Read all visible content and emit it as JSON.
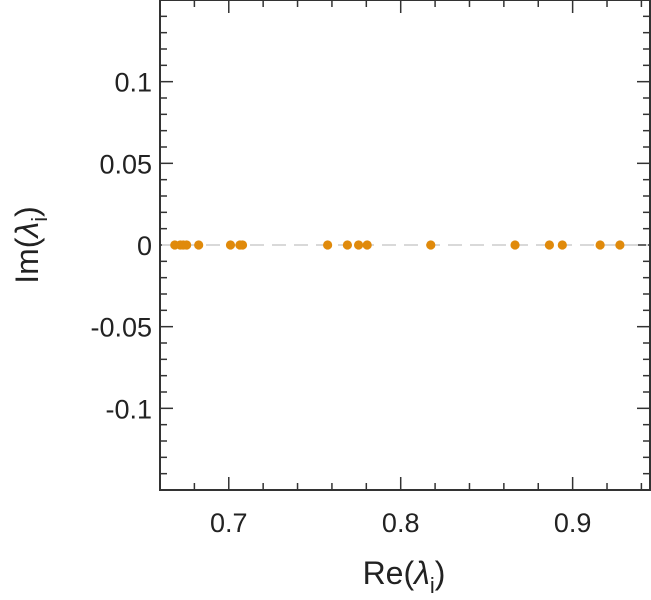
{
  "chart_data": {
    "type": "scatter",
    "xlabel": {
      "base": "Re(",
      "symbol": "λ",
      "subscript": "i",
      "close": ")"
    },
    "ylabel": {
      "base": "Im(",
      "symbol": "λ",
      "subscript": "i",
      "close": ")"
    },
    "xlim": [
      0.66,
      0.945
    ],
    "ylim": [
      -0.15,
      0.15
    ],
    "xticks": [
      0.7,
      0.8,
      0.9
    ],
    "xtick_labels": [
      "0.7",
      "0.8",
      "0.9"
    ],
    "yticks": [
      0.1,
      0.05,
      0,
      -0.05,
      -0.1
    ],
    "ytick_labels": [
      "0.1",
      "0.05",
      "0",
      "-0.05",
      "-0.1"
    ],
    "grid": false,
    "reference_line": {
      "y": 0,
      "style": "dashed",
      "color": "#d9d9d9"
    },
    "series": [
      {
        "color": "#e08a0b",
        "points": [
          {
            "x": 0.6686,
            "y": 0
          },
          {
            "x": 0.6718,
            "y": 0
          },
          {
            "x": 0.6735,
            "y": 0
          },
          {
            "x": 0.6755,
            "y": 0
          },
          {
            "x": 0.6825,
            "y": 0
          },
          {
            "x": 0.701,
            "y": 0
          },
          {
            "x": 0.7065,
            "y": 0
          },
          {
            "x": 0.708,
            "y": 0
          },
          {
            "x": 0.7575,
            "y": 0
          },
          {
            "x": 0.769,
            "y": 0
          },
          {
            "x": 0.7755,
            "y": 0
          },
          {
            "x": 0.7805,
            "y": 0
          },
          {
            "x": 0.8175,
            "y": 0
          },
          {
            "x": 0.8665,
            "y": 0
          },
          {
            "x": 0.8865,
            "y": 0
          },
          {
            "x": 0.894,
            "y": 0
          },
          {
            "x": 0.916,
            "y": 0
          },
          {
            "x": 0.9275,
            "y": 0
          }
        ]
      }
    ]
  }
}
